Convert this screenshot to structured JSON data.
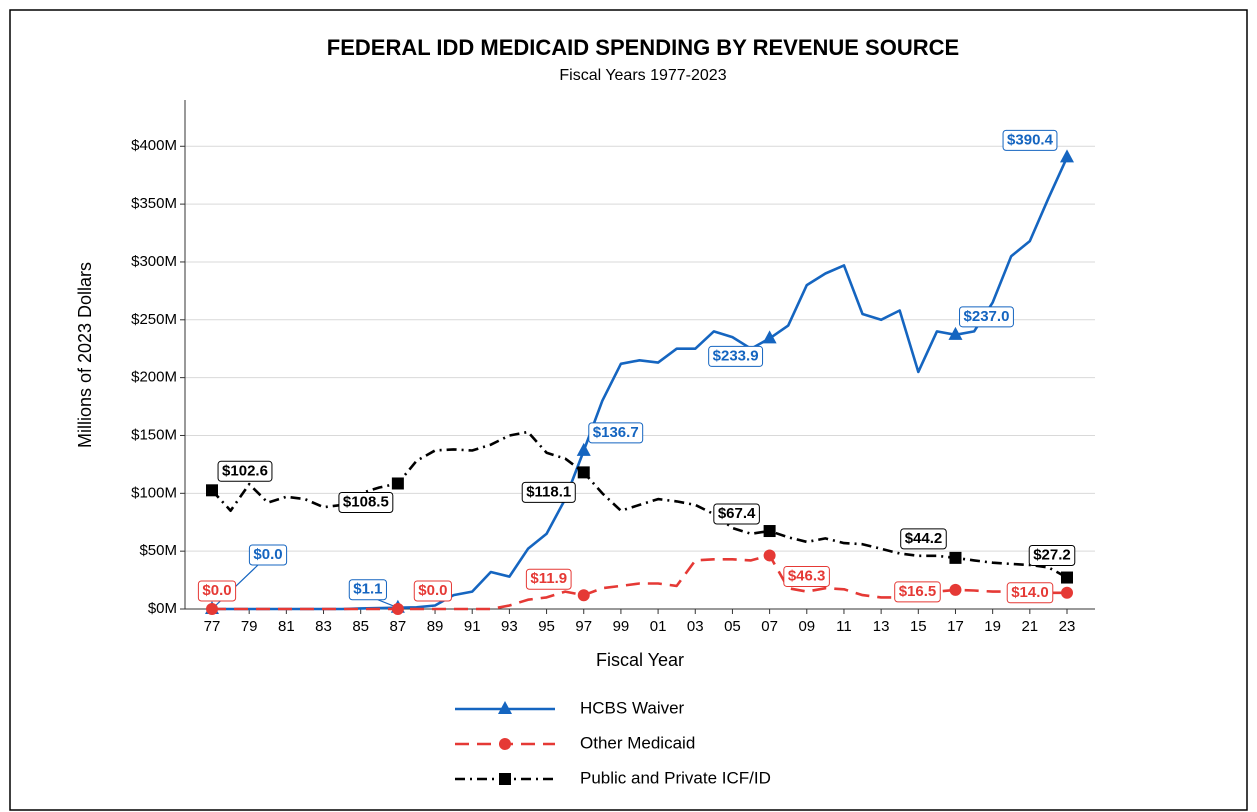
{
  "chart_data": {
    "type": "line",
    "title": "FEDERAL IDD MEDICAID SPENDING BY REVENUE SOURCE",
    "subtitle": "Fiscal Years 1977-2023",
    "x_label": "Fiscal Year",
    "y_label": "Millions of 2023 Dollars",
    "categories": [
      "77",
      null,
      "79",
      null,
      "81",
      null,
      "83",
      null,
      "85",
      null,
      "87",
      null,
      "89",
      null,
      "91",
      null,
      "93",
      null,
      "95",
      null,
      "97",
      null,
      "99",
      null,
      "01",
      null,
      "03",
      null,
      "05",
      null,
      "07",
      null,
      "09",
      null,
      "11",
      null,
      "13",
      null,
      "15",
      null,
      "17",
      null,
      "19",
      null,
      "21",
      null,
      "23"
    ],
    "ylim": [
      0,
      440
    ],
    "yticks": [
      {
        "value": 0,
        "label": "$0M"
      },
      {
        "value": 50,
        "label": "$50M"
      },
      {
        "value": 100,
        "label": "$100M"
      },
      {
        "value": 150,
        "label": "$150M"
      },
      {
        "value": 200,
        "label": "$200M"
      },
      {
        "value": 250,
        "label": "$250M"
      },
      {
        "value": 300,
        "label": "$300M"
      },
      {
        "value": 350,
        "label": "$350M"
      },
      {
        "value": 400,
        "label": "$400M"
      }
    ],
    "grid": true,
    "legend": "bottom",
    "series": [
      {
        "name": "HCBS Waiver",
        "color": "#1565c0",
        "marker": "triangle",
        "dash": "solid",
        "values": [
          0.0,
          0,
          0,
          0,
          0,
          0,
          0,
          0,
          0.5,
          0.8,
          1.1,
          1.5,
          3,
          12,
          15,
          32,
          28,
          52,
          65,
          95,
          136.7,
          180,
          212,
          215,
          213,
          225,
          225,
          240,
          235,
          225,
          233.9,
          245,
          280,
          290,
          297,
          255,
          250,
          258,
          205,
          240,
          237.0,
          240,
          265,
          305,
          318,
          355,
          390.4
        ],
        "value_labels": [
          "$0.0",
          null,
          null,
          null,
          null,
          null,
          null,
          null,
          null,
          null,
          "$1.1",
          null,
          null,
          null,
          null,
          null,
          null,
          null,
          null,
          null,
          "$136.7",
          null,
          null,
          null,
          null,
          null,
          null,
          null,
          null,
          null,
          "$233.9",
          null,
          null,
          null,
          null,
          null,
          null,
          null,
          null,
          null,
          "$237.0",
          null,
          null,
          null,
          null,
          null,
          "$390.4"
        ]
      },
      {
        "name": "Other Medicaid",
        "color": "#e53935",
        "marker": "circle",
        "dash": "dashed",
        "values": [
          0.0,
          0,
          0,
          0,
          0,
          0,
          0,
          0,
          0,
          0,
          0.0,
          0,
          0,
          0,
          0,
          0,
          3,
          8,
          10,
          15,
          11.9,
          18,
          20,
          22,
          22,
          20,
          42,
          43,
          43,
          42,
          46.3,
          18,
          15,
          18,
          17,
          12,
          10,
          10,
          12,
          15,
          16.5,
          16,
          15,
          15,
          15,
          14,
          14.0
        ],
        "value_labels": [
          "$0.0",
          null,
          null,
          null,
          null,
          null,
          null,
          null,
          null,
          null,
          "$0.0",
          null,
          null,
          null,
          null,
          null,
          null,
          null,
          null,
          null,
          "$11.9",
          null,
          null,
          null,
          null,
          null,
          null,
          null,
          null,
          null,
          "$46.3",
          null,
          null,
          null,
          null,
          null,
          null,
          null,
          null,
          null,
          "$16.5",
          null,
          null,
          null,
          null,
          null,
          "$14.0"
        ]
      },
      {
        "name": "Public and Private ICF/ID",
        "color": "#000000",
        "marker": "square",
        "dash": "dashdot",
        "values": [
          102.6,
          85,
          108,
          92,
          97,
          95,
          88,
          90,
          100,
          105,
          108.5,
          128,
          137,
          138,
          137,
          142,
          150,
          153,
          135,
          130,
          118.1,
          100,
          85,
          90,
          95,
          93,
          90,
          82,
          70,
          65,
          67.4,
          62,
          58,
          61,
          57,
          56,
          52,
          48,
          46,
          46,
          44.2,
          42,
          40,
          39,
          38,
          36,
          27.2
        ],
        "value_labels": [
          "$102.6",
          null,
          null,
          null,
          null,
          null,
          null,
          null,
          null,
          null,
          "$108.5",
          null,
          null,
          null,
          null,
          null,
          null,
          null,
          null,
          null,
          "$118.1",
          null,
          null,
          null,
          null,
          null,
          null,
          null,
          null,
          null,
          "$67.4",
          null,
          null,
          null,
          null,
          null,
          null,
          null,
          null,
          null,
          "$44.2",
          null,
          null,
          null,
          null,
          null,
          "$27.2"
        ]
      }
    ]
  }
}
